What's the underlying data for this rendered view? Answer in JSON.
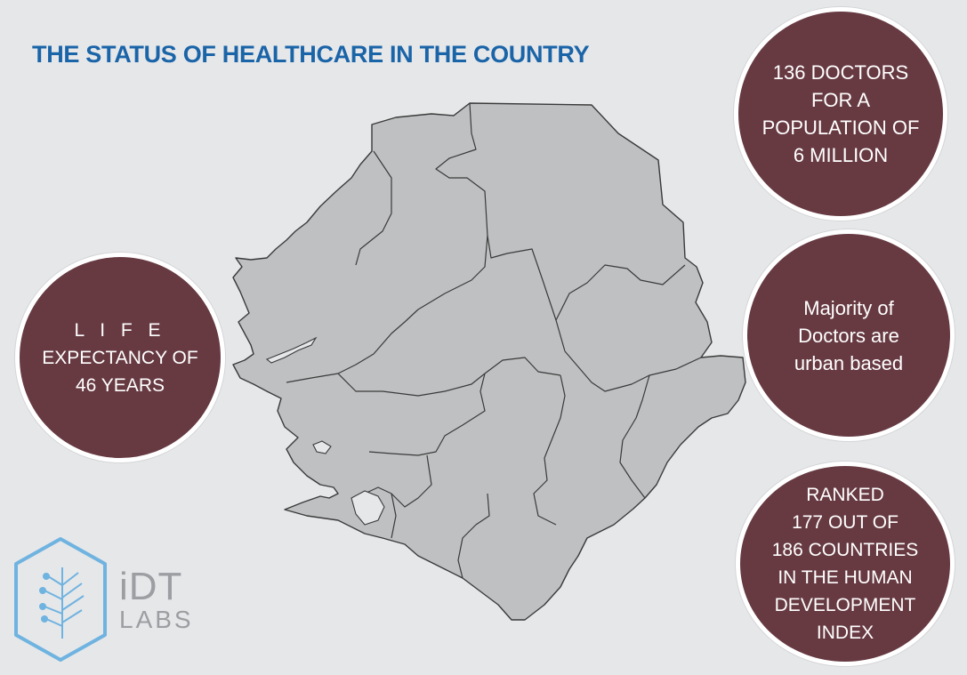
{
  "title": "THE STATUS OF HEALTHCARE IN THE COUNTRY",
  "facts": {
    "life": [
      "L I F E",
      "EXPECTANCY OF",
      "46 YEARS"
    ],
    "doctors": [
      "136 DOCTORS",
      "FOR A",
      "POPULATION OF",
      "6 MILLION"
    ],
    "urban": [
      "Majority of",
      "Doctors are",
      "urban based"
    ],
    "ranked": [
      "RANKED",
      "177 OUT OF",
      "186 COUNTRIES",
      "IN THE HUMAN",
      "DEVELOPMENT",
      "INDEX"
    ]
  },
  "logo": {
    "main": "iDT",
    "sub": "LABS"
  },
  "colors": {
    "title": "#1a64a8",
    "circle_fill": "#673a42",
    "map_fill": "#bfc0c2",
    "map_stroke": "#3a3a3a",
    "background": "#e6e7e9",
    "logo": "#6fb3e0"
  },
  "icons": {
    "map": "country-map",
    "logo": "leaf-hexagon-icon"
  }
}
